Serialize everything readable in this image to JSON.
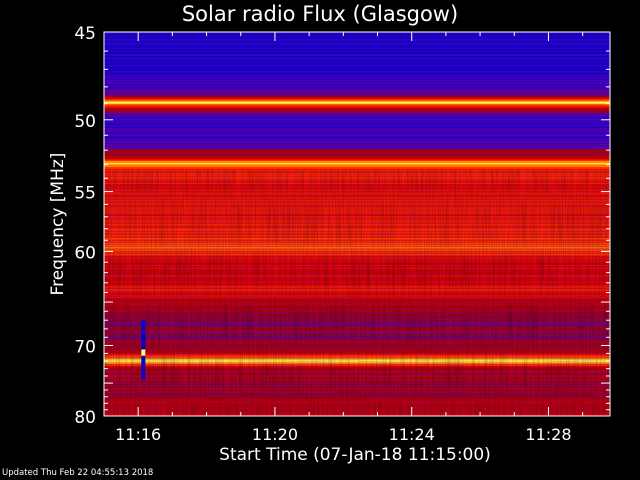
{
  "footer": {
    "updated": "Updated Thu Feb 22 04:55:13 2018"
  },
  "chart_data": {
    "type": "heatmap",
    "title": "Solar radio Flux (Glasgow)",
    "xlabel": "Start Time (07-Jan-18 11:15:00)",
    "ylabel": "Frequency [MHz]",
    "x_tick_labels": [
      "11:16",
      "11:20",
      "11:24",
      "11:28"
    ],
    "x_tick_minutes": [
      1,
      5,
      9,
      13
    ],
    "xlim_minutes_after_start": [
      0,
      14.8
    ],
    "y_tick_labels": [
      "45",
      "50",
      "55",
      "60",
      "70",
      "80"
    ],
    "y_ticks": [
      45,
      50,
      55,
      60,
      70,
      80
    ],
    "ylim": [
      45,
      80
    ],
    "y_scale": "reciprocal",
    "colormap": [
      "#0000c8",
      "#4800b8",
      "#a00010",
      "#d80000",
      "#ff3000",
      "#ffa000",
      "#ffff60"
    ],
    "frequency_profile": [
      {
        "mhz": 45.0,
        "level": 0.1
      },
      {
        "mhz": 45.5,
        "level": 0.08
      },
      {
        "mhz": 47.0,
        "level": 0.08
      },
      {
        "mhz": 48.5,
        "level": 0.22
      },
      {
        "mhz": 48.9,
        "level": 1.0
      },
      {
        "mhz": 49.3,
        "level": 0.3
      },
      {
        "mhz": 50.0,
        "level": 0.12
      },
      {
        "mhz": 51.5,
        "level": 0.15
      },
      {
        "mhz": 52.5,
        "level": 0.45
      },
      {
        "mhz": 52.9,
        "level": 0.95
      },
      {
        "mhz": 53.3,
        "level": 0.62
      },
      {
        "mhz": 55.0,
        "level": 0.55
      },
      {
        "mhz": 57.0,
        "level": 0.55
      },
      {
        "mhz": 59.0,
        "level": 0.66
      },
      {
        "mhz": 59.6,
        "level": 0.72
      },
      {
        "mhz": 61.0,
        "level": 0.5
      },
      {
        "mhz": 63.0,
        "level": 0.5
      },
      {
        "mhz": 63.9,
        "level": 0.58
      },
      {
        "mhz": 65.0,
        "level": 0.4
      },
      {
        "mhz": 67.0,
        "level": 0.28
      },
      {
        "mhz": 69.0,
        "level": 0.3
      },
      {
        "mhz": 70.8,
        "level": 0.4
      },
      {
        "mhz": 71.9,
        "level": 1.0
      },
      {
        "mhz": 73.0,
        "level": 0.35
      },
      {
        "mhz": 76.0,
        "level": 0.33
      },
      {
        "mhz": 78.0,
        "level": 0.42
      },
      {
        "mhz": 80.0,
        "level": 0.45
      }
    ],
    "features": [
      {
        "name": "burst",
        "minute": 1.15,
        "mhz_from": 67.0,
        "mhz_to": 74.5,
        "level": 0.02
      },
      {
        "name": "burst-peak",
        "minute": 1.15,
        "mhz_from": 70.5,
        "mhz_to": 71.3,
        "level": 1.0
      }
    ]
  }
}
